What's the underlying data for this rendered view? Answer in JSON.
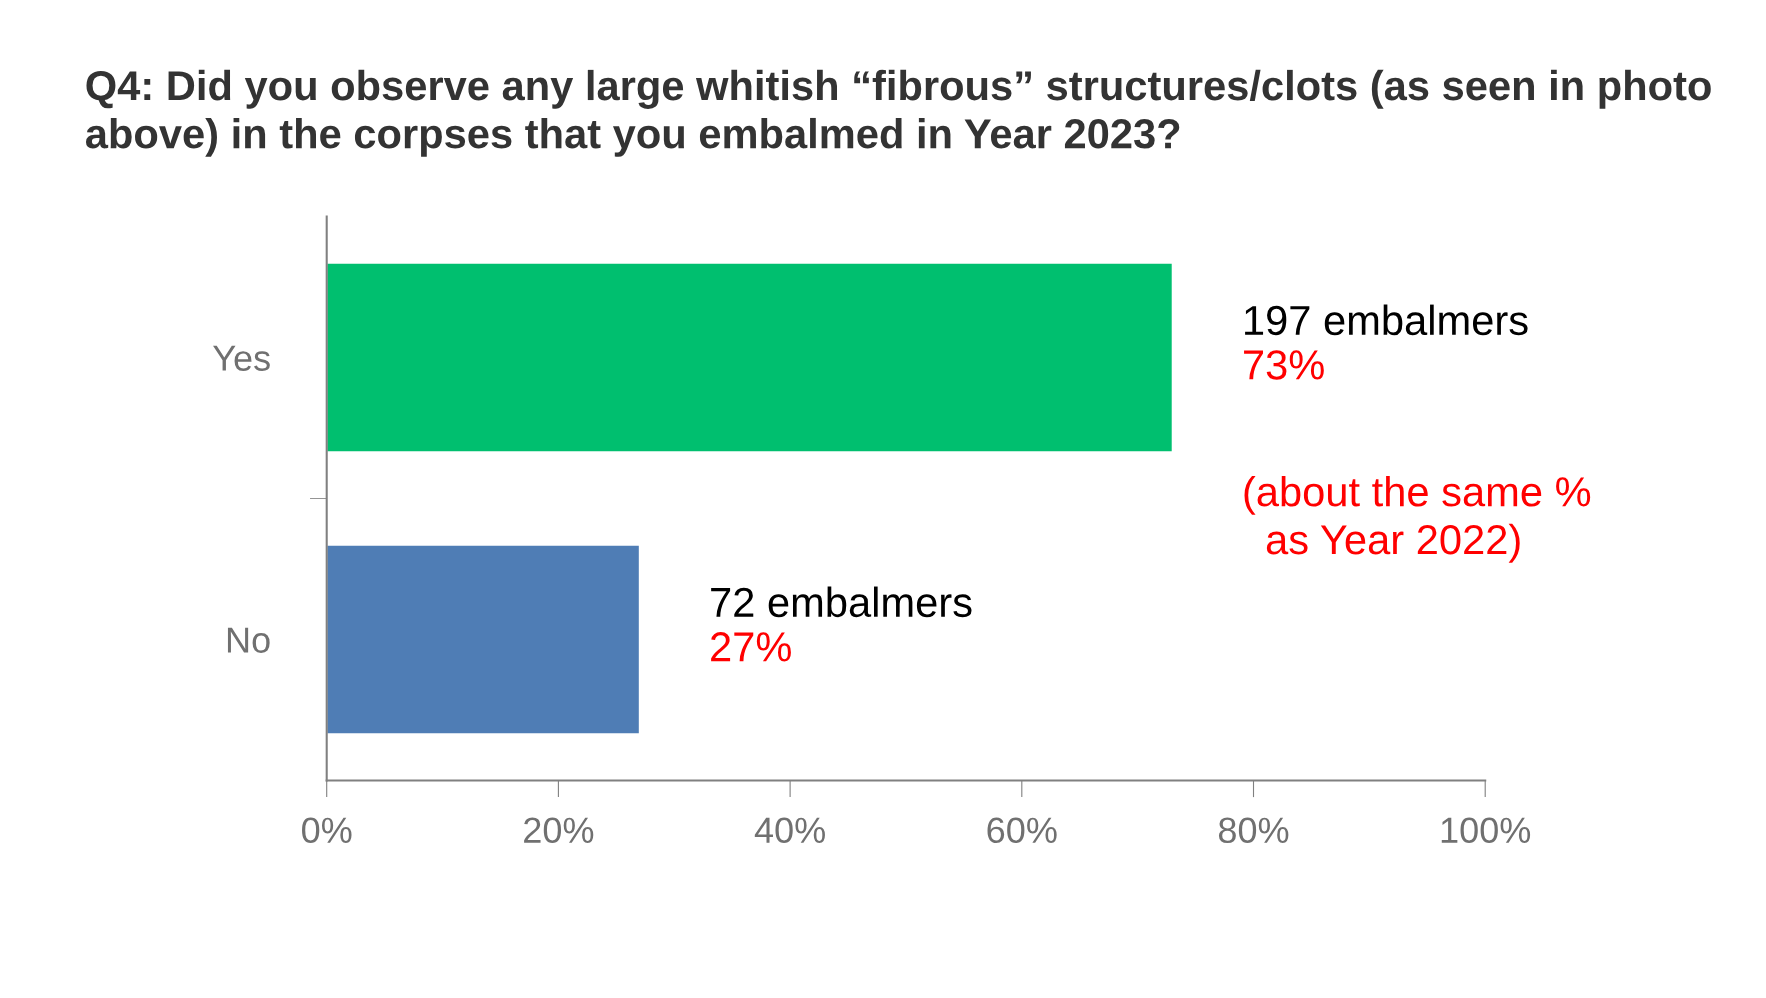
{
  "chart_data": {
    "type": "bar",
    "orientation": "horizontal",
    "title": "Q4: Did you observe any large whitish “fibrous” structures/clots (as seen in photo above) in the corpses that you embalmed in Year 2023?",
    "categories": [
      "Yes",
      "No"
    ],
    "values": [
      73,
      27
    ],
    "colors": [
      "#00bf6f",
      "#4f7db5"
    ],
    "value_labels": [
      "197 embalmers\n73%",
      "72 embalmers\n27%"
    ],
    "xlim": [
      0,
      100
    ],
    "xticks": [
      {
        "value": 0,
        "label": "0%"
      },
      {
        "value": 20,
        "label": "20%"
      },
      {
        "value": 40,
        "label": "40%"
      },
      {
        "value": 60,
        "label": "60%"
      },
      {
        "value": 80,
        "label": "80%"
      },
      {
        "value": 100,
        "label": "100%"
      }
    ],
    "annotations": [
      "(about the same %\n  as Year 2022)"
    ],
    "grid": false,
    "legend": false
  }
}
